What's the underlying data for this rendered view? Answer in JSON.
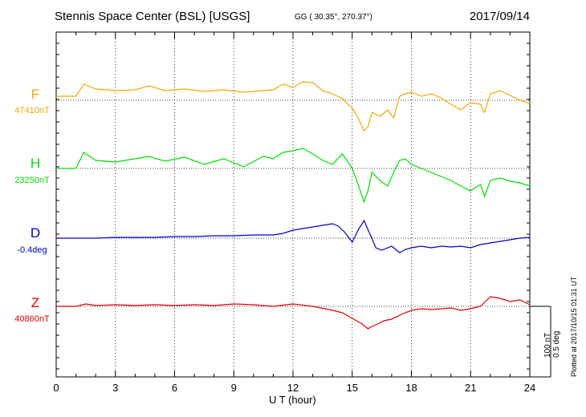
{
  "header": {
    "station": "Stennis Space Center (BSL)  [USGS]",
    "coords": "GG ( 30.35°, 270.37°)",
    "date": "2017/09/14"
  },
  "side_note": "Plotted at 2017/10/15 01:31  UT",
  "scale": {
    "line1": "100 nT",
    "line2": "0.5 deg"
  },
  "chart_data": {
    "type": "line",
    "title": "Stennis Space Center (BSL)  [USGS]",
    "xlabel": "U T (hour)",
    "xlim": [
      0,
      24
    ],
    "xticks": [
      "0",
      "3",
      "6",
      "9",
      "12",
      "15",
      "18",
      "21",
      "24"
    ],
    "grid": true,
    "scale_bar": "100 nT / 0.5 deg",
    "series": [
      {
        "name": "F",
        "baseline": "47410nT",
        "color": "#f0a800",
        "x": [
          0,
          1,
          1.4,
          2,
          3,
          4,
          4.7,
          5.5,
          6.5,
          7.5,
          8.5,
          9.5,
          10.5,
          11,
          11.5,
          12,
          12.5,
          13,
          13.5,
          14,
          14.5,
          15,
          15.3,
          15.6,
          15.8,
          16,
          16.4,
          16.8,
          17.1,
          17.4,
          17.7,
          18,
          18.5,
          19,
          19.5,
          20,
          20.5,
          21,
          21.5,
          21.7,
          22,
          22.5,
          23,
          23.5,
          24
        ],
        "y": [
          5,
          5,
          20,
          14,
          12,
          13,
          18,
          12,
          14,
          11,
          13,
          10,
          12,
          13,
          20,
          16,
          23,
          22,
          12,
          8,
          2,
          -10,
          -22,
          -38,
          -33,
          -15,
          -20,
          -12,
          -22,
          5,
          8,
          10,
          5,
          8,
          3,
          -5,
          -12,
          -3,
          -5,
          -15,
          8,
          12,
          6,
          0,
          -4
        ]
      },
      {
        "name": "H",
        "baseline": "23250nT",
        "color": "#00e000",
        "x": [
          0,
          1,
          1.4,
          2,
          3,
          4,
          4.7,
          5.5,
          6.5,
          7.5,
          8.5,
          9.5,
          10.5,
          11,
          11.5,
          12,
          12.5,
          13,
          13.5,
          14,
          14.5,
          15,
          15.3,
          15.6,
          15.8,
          16,
          16.4,
          16.8,
          17.1,
          17.4,
          17.7,
          18,
          18.5,
          19,
          19.5,
          20,
          20.5,
          21,
          21.5,
          21.7,
          22,
          22.5,
          23,
          23.5,
          24
        ],
        "y": [
          0,
          0,
          20,
          10,
          8,
          12,
          15,
          9,
          14,
          5,
          12,
          2,
          15,
          12,
          20,
          22,
          25,
          18,
          10,
          5,
          18,
          0,
          -20,
          -42,
          -28,
          -5,
          -15,
          -22,
          -5,
          10,
          12,
          5,
          0,
          -5,
          -10,
          -15,
          -22,
          -28,
          -20,
          -35,
          -15,
          -12,
          -16,
          -18,
          -22
        ]
      },
      {
        "name": "D",
        "baseline": "-0.4deg",
        "color": "#0000d0",
        "x": [
          0,
          1,
          2,
          3,
          4,
          5,
          6,
          7,
          8,
          9,
          10,
          11,
          11.5,
          12,
          12.5,
          13,
          13.5,
          14,
          14.3,
          14.6,
          15,
          15.3,
          15.6,
          15.9,
          16.2,
          16.5,
          17,
          17.4,
          17.7,
          18,
          18.5,
          19,
          19.5,
          20,
          20.5,
          21,
          21.5,
          22,
          22.5,
          23,
          23.5,
          24
        ],
        "y": [
          0,
          0,
          0,
          1,
          1,
          1,
          2,
          2,
          3,
          3,
          4,
          4,
          6,
          10,
          12,
          14,
          16,
          18,
          15,
          8,
          -5,
          10,
          22,
          5,
          -12,
          -15,
          -10,
          -18,
          -14,
          -12,
          -10,
          -12,
          -10,
          -11,
          -10,
          -12,
          -8,
          -6,
          -4,
          -2,
          0,
          1
        ]
      },
      {
        "name": "Z",
        "baseline": "40860nT",
        "color": "#e00000",
        "x": [
          0,
          1,
          1.5,
          2,
          3,
          4,
          5,
          6,
          7,
          8,
          9,
          10,
          11,
          12,
          13,
          14,
          14.5,
          15,
          15.5,
          15.8,
          16,
          16.3,
          16.6,
          17,
          17.5,
          18,
          18.5,
          19,
          19.5,
          20,
          20.5,
          21,
          21.5,
          22,
          22.5,
          23,
          23.5,
          24
        ],
        "y": [
          0,
          0,
          3,
          1,
          2,
          1,
          2,
          1,
          2,
          1,
          3,
          2,
          0,
          3,
          0,
          -5,
          -8,
          -15,
          -22,
          -28,
          -25,
          -22,
          -18,
          -16,
          -10,
          -5,
          -3,
          -4,
          -3,
          -2,
          -5,
          -3,
          0,
          12,
          10,
          6,
          8,
          2
        ]
      }
    ]
  }
}
